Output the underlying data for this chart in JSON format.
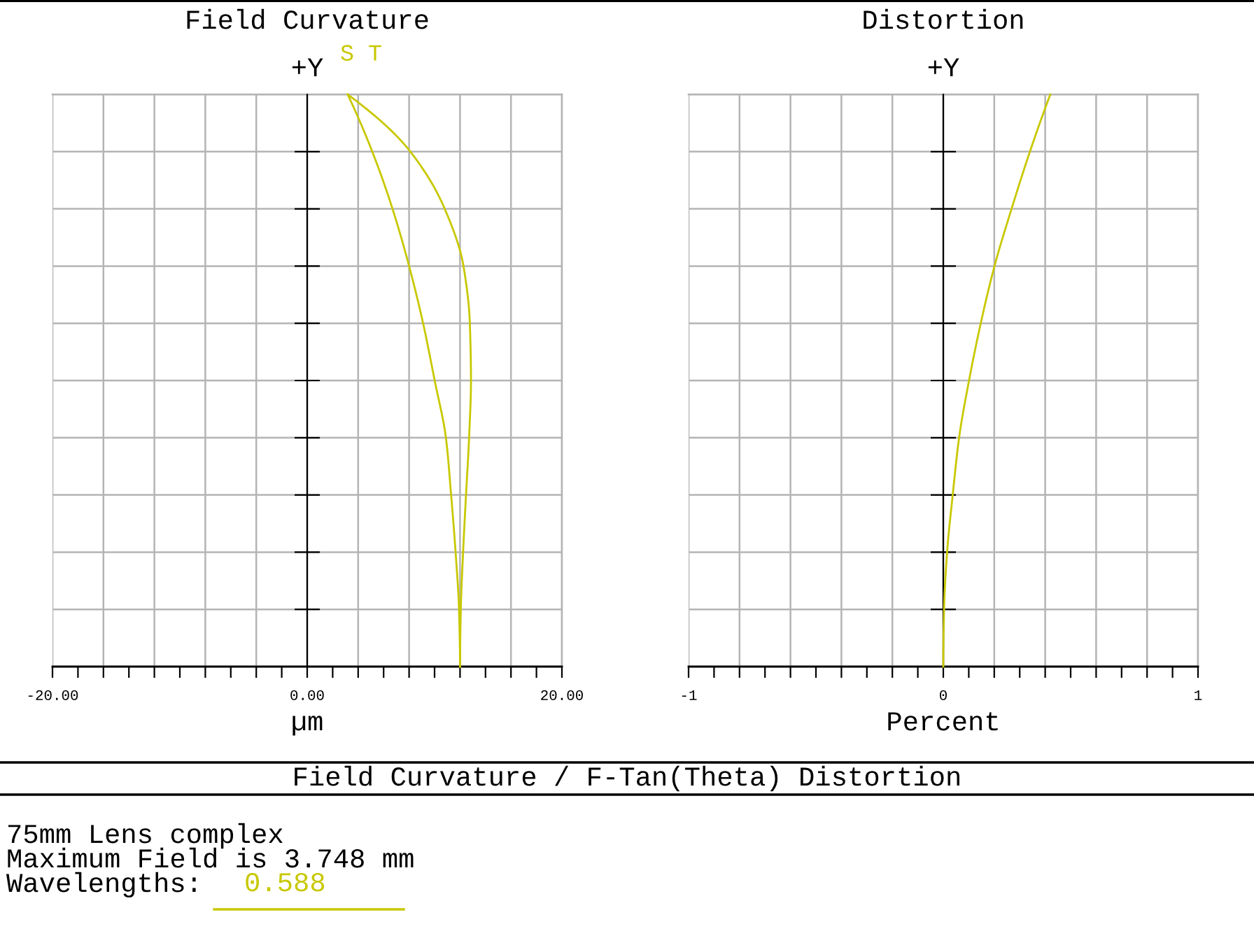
{
  "chart_data": [
    {
      "type": "line",
      "orientation": "horizontal",
      "title": "Field Curvature",
      "xlabel": "µm",
      "ylabel": "+Y",
      "xlim": [
        -20,
        20
      ],
      "xticks": [
        {
          "value": -20,
          "label": "-20.00"
        },
        {
          "value": -16,
          "label": null
        },
        {
          "value": -12,
          "label": null
        },
        {
          "value": -8,
          "label": null
        },
        {
          "value": -4,
          "label": null
        },
        {
          "value": 0,
          "label": "0.00"
        },
        {
          "value": 4,
          "label": null
        },
        {
          "value": 8,
          "label": null
        },
        {
          "value": 12,
          "label": null
        },
        {
          "value": 16,
          "label": null
        },
        {
          "value": 20,
          "label": "20.00"
        }
      ],
      "categories": [
        null,
        null,
        null,
        null,
        null,
        null,
        null,
        null,
        null,
        null,
        null
      ],
      "tick_labels": "x",
      "grid": true,
      "legend": "top",
      "series": [
        {
          "name": "S",
          "color": "#c8c800",
          "values": [
            3.18,
            5.11,
            6.7,
            8.0,
            9.1,
            10.01,
            10.89,
            11.3,
            11.65,
            11.92,
            12.0
          ]
        },
        {
          "name": "T",
          "color": "#c8c800",
          "values": [
            3.18,
            8.1,
            10.8,
            12.27,
            12.77,
            12.86,
            12.71,
            12.47,
            12.24,
            12.06,
            12.0
          ]
        }
      ]
    },
    {
      "type": "line",
      "orientation": "horizontal",
      "title": "Distortion",
      "xlabel": "Percent",
      "ylabel": "+Y",
      "xlim": [
        -1,
        1
      ],
      "xticks": [
        -1,
        {
          "value": -0.8,
          "label": null
        },
        {
          "value": -0.6,
          "label": null
        },
        {
          "value": -0.4,
          "label": null
        },
        {
          "value": -0.2,
          "label": null
        },
        0,
        {
          "value": 0.2,
          "label": null
        },
        {
          "value": 0.4,
          "label": null
        },
        {
          "value": 0.6,
          "label": null
        },
        {
          "value": 0.8,
          "label": null
        },
        1
      ],
      "categories": [
        null,
        null,
        null,
        null,
        null,
        null,
        null,
        null,
        null,
        null,
        null
      ],
      "tick_labels": "x",
      "grid": true,
      "series": [
        {
          "color": "#c8c800",
          "values": [
            0.42,
            0.34,
            0.268,
            0.201,
            0.147,
            0.101,
            0.062,
            0.037,
            0.015,
            0.003,
            0
          ]
        }
      ]
    },
    {
      "type": "other",
      "title": "Field Curvature / F-Tan(Theta) Distortion",
      "annotations": [
        "75mm Lens complex",
        "Maximum Field is 3.748 mm",
        "Wavelengths:"
      ],
      "series": [
        {
          "name": "0.588",
          "color": "#c8c800"
        }
      ]
    }
  ]
}
